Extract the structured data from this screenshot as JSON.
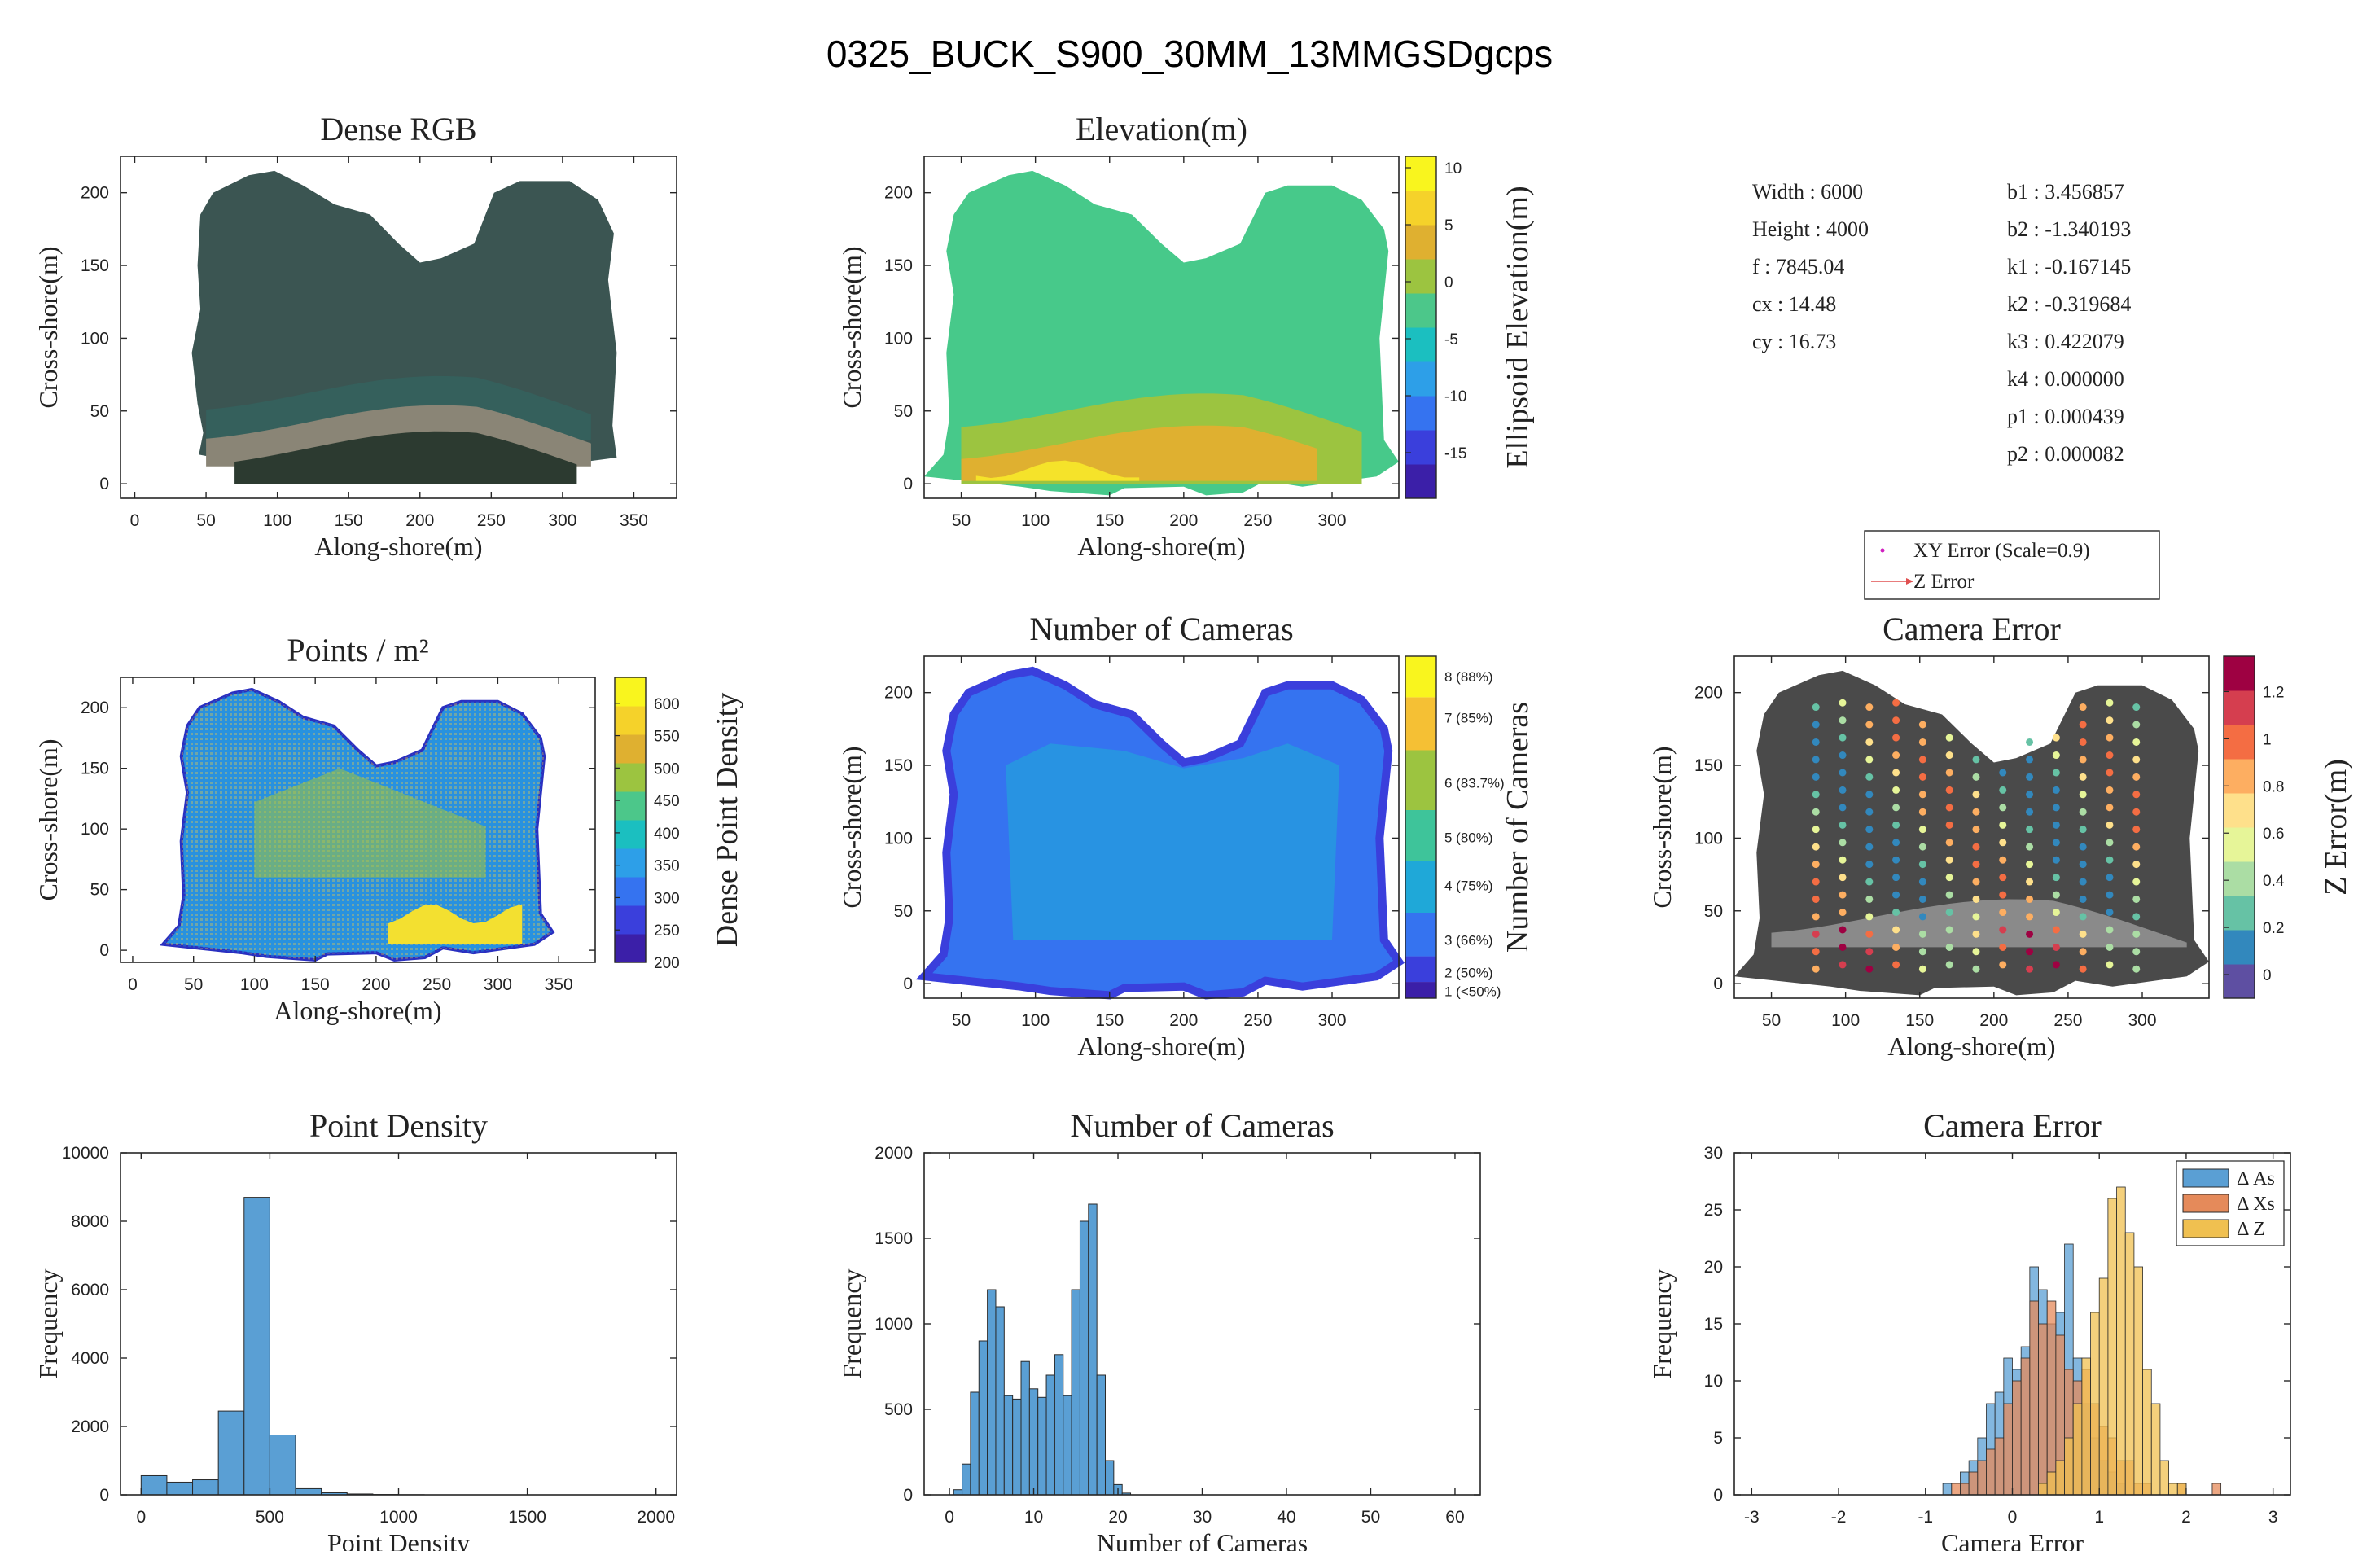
{
  "figure_title": "0325_BUCK_S900_30MM_13MMGSDgcps",
  "camera_params": {
    "left": [
      "Width : 6000",
      "Height : 4000",
      "f : 7845.04",
      "cx : 14.48",
      "cy : 16.73"
    ],
    "right": [
      "b1 : 3.456857",
      "b2 : -1.340193",
      "k1 : -0.167145",
      "k2 : -0.319684",
      "k3 : 0.422079",
      "k4 : 0.000000",
      "p1 : 0.000439",
      "p2 : 0.000082"
    ]
  },
  "colors": {
    "hist_blue": "#5a9fd4",
    "hist_orange": "#e58a5a",
    "hist_yellow": "#f0c050",
    "arrow_red": "#e05050",
    "marker_magenta": "#d020c0"
  },
  "chart_data": [
    {
      "id": "dense-rgb",
      "type": "heatmap",
      "title": "Dense RGB",
      "xlabel": "Along-shore(m)",
      "ylabel": "Cross-shore(m)",
      "xlim": [
        -10,
        380
      ],
      "ylim": [
        -10,
        225
      ],
      "xticks": [
        0,
        50,
        100,
        150,
        200,
        250,
        300,
        350
      ],
      "yticks": [
        0,
        50,
        100,
        150,
        200
      ],
      "colorbar": null
    },
    {
      "id": "elevation",
      "type": "heatmap",
      "title": "Elevation(m)",
      "xlabel": "Along-shore(m)",
      "ylabel": "Cross-shore(m)",
      "xlim": [
        25,
        345
      ],
      "ylim": [
        -10,
        225
      ],
      "xticks": [
        50,
        100,
        150,
        200,
        250,
        300
      ],
      "yticks": [
        0,
        50,
        100,
        150,
        200
      ],
      "colorbar": {
        "label": "Ellipsoid Elevation(m)",
        "range": [
          -19,
          11
        ],
        "ticks": [
          10,
          5,
          0,
          -5,
          -10,
          -15
        ],
        "tick_labels": [
          "10",
          "5",
          "0",
          "-5",
          "-10",
          "-15"
        ],
        "colors": [
          "#3b1fa8",
          "#3a3fdc",
          "#3573f0",
          "#2d9fe8",
          "#1bbfc0",
          "#4cc78a",
          "#9cc440",
          "#dfb030",
          "#f5d22a",
          "#f9f51e"
        ]
      }
    },
    {
      "id": "points-per-m2",
      "type": "heatmap",
      "title": "Points / m²",
      "xlabel": "Along-shore(m)",
      "ylabel": "Cross-shore(m)",
      "xlim": [
        -10,
        380
      ],
      "ylim": [
        -10,
        225
      ],
      "xticks": [
        0,
        50,
        100,
        150,
        200,
        250,
        300,
        350
      ],
      "yticks": [
        0,
        50,
        100,
        150,
        200
      ],
      "colorbar": {
        "label": "Dense Point Density",
        "range": [
          200,
          640
        ],
        "ticks": [
          600,
          550,
          500,
          450,
          400,
          350,
          300,
          250,
          200
        ],
        "tick_labels": [
          "600",
          "550",
          "500",
          "450",
          "400",
          "350",
          "300",
          "250",
          "200"
        ],
        "colors": [
          "#3b1fa8",
          "#3a3fdc",
          "#3573f0",
          "#2d9fe8",
          "#1bbfc0",
          "#4cc78a",
          "#9cc440",
          "#dfb030",
          "#f5d22a",
          "#f9f51e"
        ]
      }
    },
    {
      "id": "number-of-cameras-map",
      "type": "heatmap",
      "title": "Number of Cameras",
      "xlabel": "Along-shore(m)",
      "ylabel": "Cross-shore(m)",
      "xlim": [
        25,
        345
      ],
      "ylim": [
        -10,
        225
      ],
      "xticks": [
        50,
        100,
        150,
        200,
        250,
        300
      ],
      "yticks": [
        0,
        50,
        100,
        150,
        200
      ],
      "colorbar": {
        "label": "Number of Cameras",
        "levels": [
          {
            "label": "1 (<50%)",
            "color": "#3b1fa8"
          },
          {
            "label": "2 (50%)",
            "color": "#3a3fdc"
          },
          {
            "label": "3 (66%)",
            "color": "#3573f0"
          },
          {
            "label": "4 (75%)",
            "color": "#1fa8d8"
          },
          {
            "label": "5 (80%)",
            "color": "#3ec49a"
          },
          {
            "label": "6 (83.7%)",
            "color": "#9cc440"
          },
          {
            "label": "7 (85%)",
            "color": "#f5c034"
          },
          {
            "label": "8 (88%)",
            "color": "#f9f51e"
          }
        ],
        "level_fractions": [
          0.02,
          0.075,
          0.17,
          0.33,
          0.47,
          0.63,
          0.82,
          0.94
        ]
      }
    },
    {
      "id": "camera-error-map",
      "type": "scatter",
      "title": "Camera Error",
      "xlabel": "Along-shore(m)",
      "ylabel": "Cross-shore(m)",
      "xlim": [
        25,
        345
      ],
      "ylim": [
        -10,
        225
      ],
      "xticks": [
        50,
        100,
        150,
        200,
        250,
        300
      ],
      "yticks": [
        0,
        50,
        100,
        150,
        200
      ],
      "legend": [
        "XY Error (Scale=0.9)",
        "Z Error"
      ],
      "legend_position": "above",
      "colorbar": {
        "label": "Z Error(m)",
        "range": [
          -0.1,
          1.35
        ],
        "ticks": [
          1.2,
          1,
          0.8,
          0.6,
          0.4,
          0.2,
          0
        ],
        "tick_labels": [
          "1.2",
          "1",
          "0.8",
          "0.6",
          "0.4",
          "0.2",
          "0"
        ],
        "colors": [
          "#5e4fa2",
          "#3288bd",
          "#66c2a5",
          "#abdda4",
          "#e6f598",
          "#fee08b",
          "#fdae61",
          "#f46d43",
          "#d53e4f",
          "#9e0142"
        ]
      }
    },
    {
      "id": "point-density-hist",
      "type": "bar",
      "title": "Point Density",
      "xlabel": "Point Density",
      "ylabel": "Frequency",
      "xlim": [
        -80,
        2080
      ],
      "ylim": [
        0,
        10000
      ],
      "xticks": [
        0,
        500,
        1000,
        1500,
        2000
      ],
      "yticks": [
        0,
        2000,
        4000,
        6000,
        8000,
        10000
      ],
      "bin_edges": [
        0,
        100,
        200,
        300,
        400,
        500,
        600,
        700,
        800,
        900,
        1000,
        1100
      ],
      "values": [
        560,
        370,
        440,
        2450,
        8700,
        1750,
        180,
        60,
        25,
        10,
        4
      ]
    },
    {
      "id": "number-of-cameras-hist",
      "type": "bar",
      "title": "Number of Cameras",
      "xlabel": "Number of Cameras",
      "ylabel": "Frequency",
      "xlim": [
        -3,
        63
      ],
      "ylim": [
        0,
        2000
      ],
      "xticks": [
        0,
        10,
        20,
        30,
        40,
        50,
        60
      ],
      "yticks": [
        0,
        500,
        1000,
        1500,
        2000
      ],
      "bin_start": 0.5,
      "bin_width": 1,
      "values": [
        30,
        180,
        600,
        900,
        1200,
        1100,
        580,
        560,
        780,
        620,
        570,
        700,
        820,
        580,
        1200,
        1600,
        1700,
        700,
        200,
        60,
        10
      ]
    },
    {
      "id": "camera-error-hist",
      "type": "bar",
      "title": "Camera Error",
      "xlabel": "Camera Error",
      "ylabel": "Frequency",
      "xlim": [
        -3.2,
        3.2
      ],
      "ylim": [
        0,
        30
      ],
      "xticks": [
        -3,
        -2,
        -1,
        0,
        1,
        2,
        3
      ],
      "yticks": [
        0,
        5,
        10,
        15,
        20,
        25,
        30
      ],
      "legend_position": "top-right",
      "bin_start": -3,
      "bin_width": 0.1,
      "series": [
        {
          "name": "Δ As",
          "values": [
            0,
            0,
            0,
            0,
            0,
            0,
            0,
            0,
            0,
            0,
            0,
            0,
            0,
            0,
            0,
            0,
            0,
            0,
            0,
            0,
            0,
            0,
            1,
            0,
            2,
            3,
            5,
            8,
            9,
            12,
            11,
            13,
            20,
            18,
            15,
            16,
            22,
            12,
            8,
            5,
            3,
            2,
            1,
            0,
            0,
            0,
            0,
            0,
            0,
            0,
            0,
            0,
            0,
            0,
            0,
            0,
            0,
            0,
            0,
            0
          ]
        },
        {
          "name": "Δ Xs",
          "values": [
            0,
            0,
            0,
            0,
            0,
            0,
            0,
            0,
            0,
            0,
            0,
            0,
            0,
            0,
            0,
            0,
            0,
            0,
            0,
            0,
            0,
            0,
            0,
            1,
            1,
            2,
            3,
            4,
            5,
            8,
            10,
            12,
            17,
            15,
            17,
            14,
            11,
            10,
            11,
            8,
            6,
            5,
            3,
            3,
            1,
            1,
            0,
            0,
            0,
            1,
            0,
            0,
            0,
            1,
            0,
            0,
            0,
            0,
            0,
            0
          ]
        },
        {
          "name": "Δ Z",
          "values": [
            0,
            0,
            0,
            0,
            0,
            0,
            0,
            0,
            0,
            0,
            0,
            0,
            0,
            0,
            0,
            0,
            0,
            0,
            0,
            0,
            0,
            0,
            0,
            0,
            0,
            0,
            0,
            0,
            0,
            0,
            0,
            0,
            0,
            1,
            2,
            3,
            5,
            8,
            12,
            16,
            19,
            26,
            27,
            23,
            20,
            11,
            8,
            3,
            1,
            1,
            0,
            0,
            0,
            0,
            0,
            0,
            0,
            0,
            0,
            0
          ]
        }
      ]
    }
  ]
}
